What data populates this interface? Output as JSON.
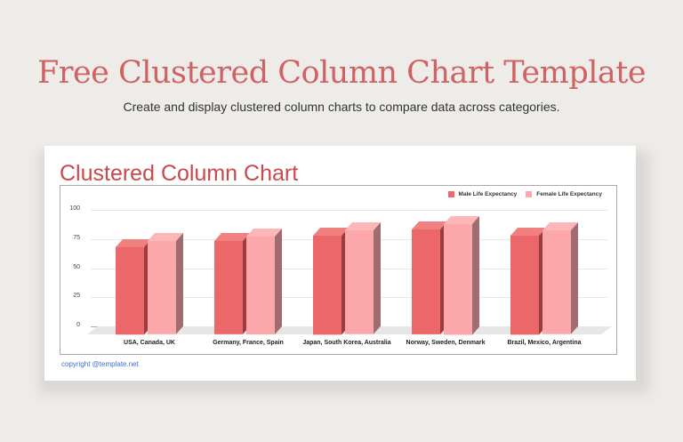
{
  "header": {
    "title": "Free Clustered Column Chart Template",
    "subtitle": "Create and display clustered column charts to compare data across categories."
  },
  "card": {
    "chart_title": "Clustered Column Chart",
    "copyright": "copyright @template.net"
  },
  "colors": {
    "title": "#d06264",
    "male": "#ec6769",
    "female": "#fca8aa",
    "copyright": "#3b6fd0"
  },
  "chart_data": {
    "type": "bar",
    "title": "Clustered Column Chart",
    "categories": [
      "USA, Canada, UK",
      "Germany, France, Spain",
      "Japan, South Korea, Australia",
      "Norway, Sweden, Denmark",
      "Brazil, Mexico, Argentina"
    ],
    "series": [
      {
        "name": "Male Life Expectancy",
        "values": [
          75,
          80,
          85,
          90,
          85
        ]
      },
      {
        "name": "Female Life Expectancy",
        "values": [
          80,
          84,
          89,
          95,
          89
        ]
      }
    ],
    "yticks": [
      "100",
      "75",
      "50",
      "25",
      "0"
    ],
    "ylim": [
      0,
      100
    ],
    "xlabel": "",
    "ylabel": "",
    "grid": true,
    "legend_position": "top-right",
    "style": "3d-clustered-column"
  }
}
